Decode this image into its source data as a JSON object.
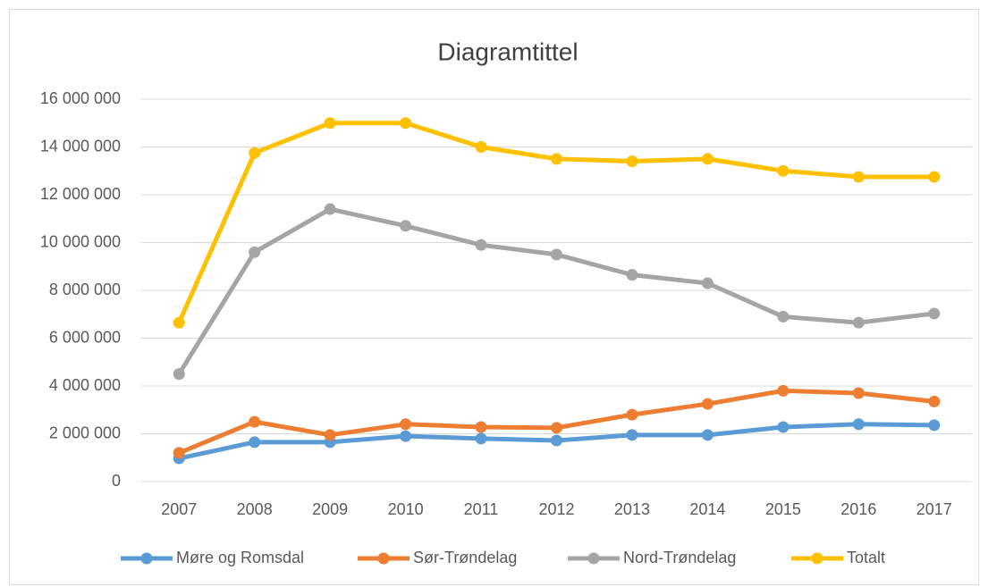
{
  "chart_data": {
    "type": "line",
    "title": "Diagramtittel",
    "categories": [
      "2007",
      "2008",
      "2009",
      "2010",
      "2011",
      "2012",
      "2013",
      "2014",
      "2015",
      "2016",
      "2017"
    ],
    "series": [
      {
        "name": "Møre og Romsdal",
        "color": "#5b9bd5",
        "values": [
          970000,
          1650000,
          1650000,
          1900000,
          1800000,
          1720000,
          1950000,
          1950000,
          2280000,
          2400000,
          2360000
        ]
      },
      {
        "name": "Sør-Trøndelag",
        "color": "#ed7d31",
        "values": [
          1200000,
          2500000,
          1950000,
          2400000,
          2280000,
          2250000,
          2800000,
          3250000,
          3800000,
          3700000,
          3350000
        ]
      },
      {
        "name": "Nord-Trøndelag",
        "color": "#a5a5a5",
        "values": [
          4500000,
          9600000,
          11400000,
          10700000,
          9900000,
          9500000,
          8650000,
          8300000,
          6900000,
          6650000,
          7030000
        ]
      },
      {
        "name": "Totalt",
        "color": "#ffc000",
        "values": [
          6650000,
          13750000,
          15000000,
          15000000,
          14000000,
          13500000,
          13400000,
          13500000,
          13000000,
          12750000,
          12750000
        ]
      }
    ],
    "ylim": [
      0,
      16000000
    ],
    "yticks": [
      0,
      {
        "value": 2000000,
        "label": "2 000 000"
      },
      {
        "value": 4000000,
        "label": "4 000 000"
      },
      {
        "value": 6000000,
        "label": "6 000 000"
      },
      {
        "value": 8000000,
        "label": "8 000 000"
      },
      {
        "value": 10000000,
        "label": "10 000 000"
      },
      {
        "value": 12000000,
        "label": "12 000 000"
      },
      {
        "value": 14000000,
        "label": "14 000 000"
      },
      {
        "value": 16000000,
        "label": "16 000 000"
      }
    ],
    "grid": true,
    "legend": "bottom"
  }
}
